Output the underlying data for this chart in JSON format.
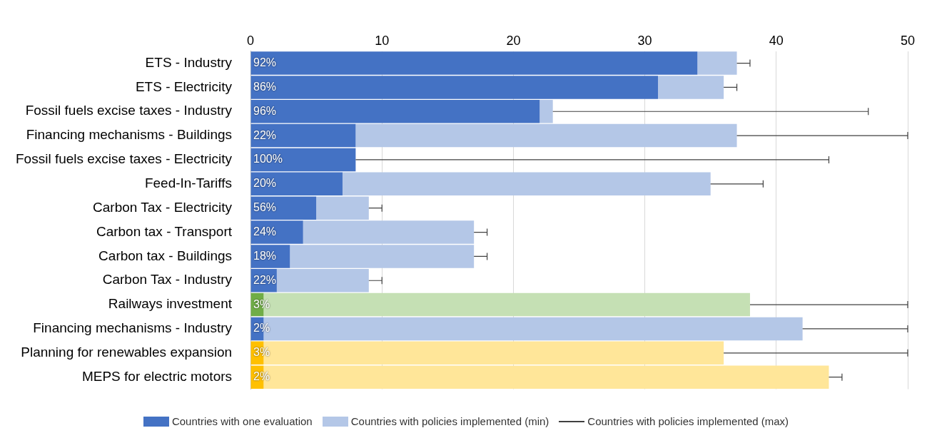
{
  "chart_data": {
    "type": "bar",
    "orientation": "horizontal",
    "stacked": true,
    "categories": [
      "ETS - Industry",
      "ETS - Electricity",
      "Fossil fuels excise taxes - Industry",
      "Financing mechanisms - Buildings",
      "Fossil fuels excise taxes - Electricity",
      "Feed-In-Tariffs",
      "Carbon Tax - Electricity",
      "Carbon tax - Transport",
      "Carbon tax - Buildings",
      "Carbon Tax - Industry",
      "Railways investment",
      "Financing mechanisms - Industry",
      "Planning for renewables expansion",
      "MEPS for electric motors"
    ],
    "series": [
      {
        "name": "Countries with one evaluation",
        "color": "#4472c4",
        "colors": [
          "#4472c4",
          "#4472c4",
          "#4472c4",
          "#4472c4",
          "#4472c4",
          "#4472c4",
          "#4472c4",
          "#4472c4",
          "#4472c4",
          "#4472c4",
          "#70ad47",
          "#4472c4",
          "#ffc000",
          "#ffc000"
        ],
        "values": [
          34,
          31,
          22,
          8,
          8,
          7,
          5,
          4,
          3,
          2,
          1,
          1,
          1,
          1
        ],
        "errors": [
          null,
          null,
          null,
          null,
          [
            8,
            44
          ],
          null,
          null,
          null,
          null,
          null,
          null,
          null,
          null,
          null
        ]
      },
      {
        "name": "Countries with policies implemented (min)",
        "color": "#b4c7e7",
        "colors": [
          "#b4c7e7",
          "#b4c7e7",
          "#b4c7e7",
          "#b4c7e7",
          "#b4c7e7",
          "#b4c7e7",
          "#b4c7e7",
          "#b4c7e7",
          "#b4c7e7",
          "#b4c7e7",
          "#c5e0b4",
          "#b4c7e7",
          "#ffe699",
          "#ffe699"
        ],
        "values": [
          3,
          5,
          1,
          29,
          null,
          28,
          4,
          13,
          14,
          7,
          37,
          41,
          35,
          43
        ],
        "errors": [
          [
            37,
            38
          ],
          [
            36,
            37
          ],
          [
            23,
            47
          ],
          [
            37,
            50
          ],
          null,
          [
            35,
            39
          ],
          [
            9,
            10
          ],
          [
            17,
            18
          ],
          [
            17,
            18
          ],
          [
            9,
            10
          ],
          [
            38,
            50
          ],
          [
            42,
            50
          ],
          [
            36,
            50
          ],
          [
            44,
            45
          ]
        ]
      }
    ],
    "annotations": [
      "Countries with policies implemented (max)",
      {
        "text": "92%",
        "y": "ETS - Industry"
      },
      {
        "text": "86%",
        "y": "ETS - Electricity"
      },
      {
        "text": "96%",
        "y": "Fossil fuels excise taxes - Industry"
      },
      {
        "text": "22%",
        "y": "Financing mechanisms - Buildings"
      },
      {
        "text": "100%",
        "y": "Fossil fuels excise taxes - Electricity"
      },
      {
        "text": "20%",
        "y": "Feed-In-Tariffs"
      },
      {
        "text": "56%",
        "y": "Carbon Tax - Electricity"
      },
      {
        "text": "24%",
        "y": "Carbon tax - Transport"
      },
      {
        "text": "18%",
        "y": "Carbon tax - Buildings"
      },
      {
        "text": "22%",
        "y": "Carbon Tax - Industry"
      },
      {
        "text": "3%",
        "y": "Railways investment"
      },
      {
        "text": "2%",
        "y": "Financing mechanisms - Industry"
      },
      {
        "text": "3%",
        "y": "Planning for renewables expansion"
      },
      {
        "text": "2%",
        "y": "MEPS for electric motors"
      }
    ],
    "xlim": [
      0,
      50
    ],
    "xticks": [
      0,
      10,
      20,
      30,
      40,
      50
    ],
    "grid": "x",
    "legend": "bottom"
  }
}
